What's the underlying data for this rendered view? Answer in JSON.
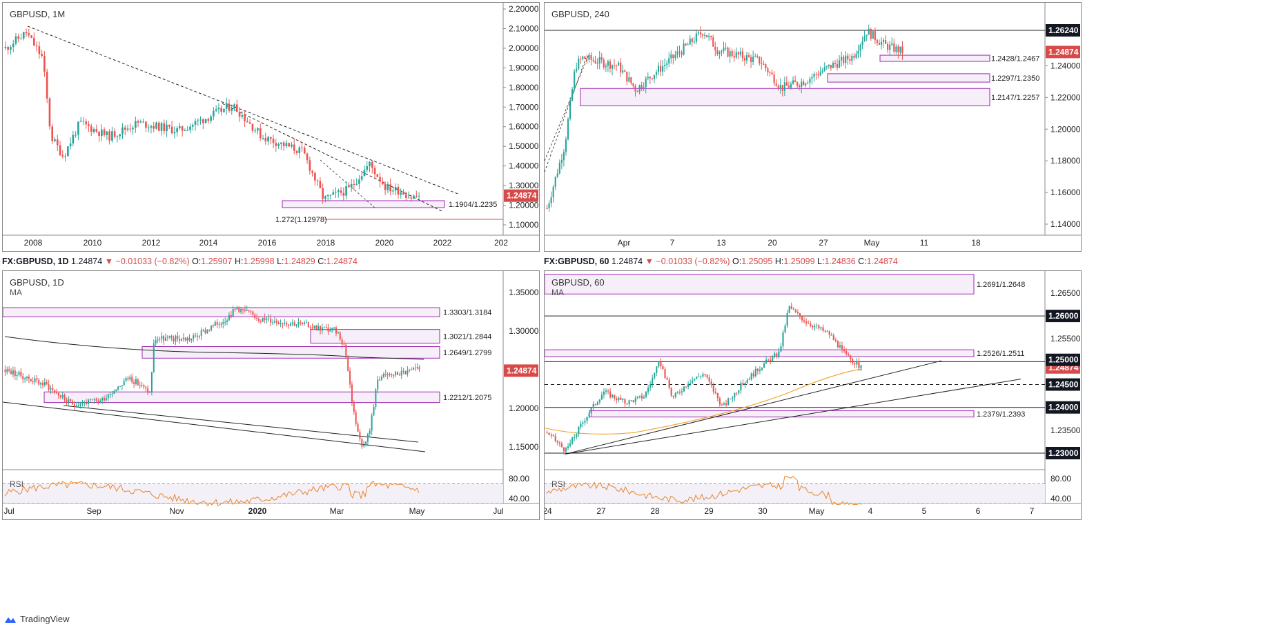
{
  "app": {
    "brand": "TradingView"
  },
  "colors": {
    "up": "#26a69a",
    "down": "#ef5350",
    "zone_border": "#9c27b0",
    "zone_fill": "#f6eef8",
    "accent_red": "#d84a4a",
    "ma": "#f0a830",
    "rsi": "#e8862a"
  },
  "charts": {
    "monthly": {
      "title": "GBPUSD, 1M",
      "price_tag": "1.24874",
      "y_ticks": [
        "2.20000",
        "2.10000",
        "2.00000",
        "1.90000",
        "1.80000",
        "1.70000",
        "1.60000",
        "1.50000",
        "1.40000",
        "1.30000",
        "1.20000",
        "1.10000"
      ],
      "x_ticks": [
        "2008",
        "2010",
        "2012",
        "2014",
        "2016",
        "2018",
        "2020",
        "2022",
        "202"
      ],
      "zone_label": "1.1904/1.2235",
      "fib_label": "1.272(1.12978)"
    },
    "h4": {
      "title": "GBPUSD, 240",
      "infobar": {
        "symbol": "FX:GBPUSD, 60",
        "last": "1.24874",
        "change": "▼ −0.01033 (−0.82%)",
        "o": "O:",
        "o_val": "1.25095",
        "h": "H:",
        "h_val": "1.25099",
        "l": "L:",
        "l_val": "1.24836",
        "c": "C:",
        "c_val": "1.24874"
      },
      "price_tag": "1.24874",
      "level_tag": "1.26240",
      "y_ticks": [
        "1.24000",
        "1.22000",
        "1.20000",
        "1.18000",
        "1.16000",
        "1.14000"
      ],
      "x_ticks": [
        "Apr",
        "7",
        "13",
        "20",
        "27",
        "May",
        "11",
        "18"
      ],
      "zones": [
        "1.2428/1.2467",
        "1.2297/1.2350",
        "1.2147/1.2257"
      ]
    },
    "daily": {
      "title": "GBPUSD, 1D",
      "ma_label": "MA",
      "rsi_label": "RSI",
      "infobar": {
        "symbol": "FX:GBPUSD, 1D",
        "last": "1.24874",
        "change": "▼ −0.01033 (−0.82%)",
        "o": "O:",
        "o_val": "1.25907",
        "h": "H:",
        "h_val": "1.25998",
        "l": "L:",
        "l_val": "1.24829",
        "c": "C:",
        "c_val": "1.24874"
      },
      "price_tag": "1.24874",
      "y_ticks": [
        "1.35000",
        "1.30000",
        "1.25000",
        "1.20000",
        "1.15000"
      ],
      "rsi_ticks": [
        "80.00",
        "40.00"
      ],
      "x_ticks": [
        "Jul",
        "Sep",
        "Nov",
        "2020",
        "Mar",
        "May",
        "Jul"
      ],
      "zones": [
        "1.3303/1.3184",
        "1.3021/1.2844",
        "1.2649/1.2799",
        "1.2212/1.2075"
      ]
    },
    "h1": {
      "title": "GBPUSD, 60",
      "ma_label": "MA",
      "rsi_label": "RSI",
      "price_tag": "1.24874",
      "level_tags": [
        "1.26000",
        "1.25000",
        "1.24500",
        "1.24000",
        "1.23000"
      ],
      "y_ticks": [
        "1.26500",
        "1.25500",
        "1.23500"
      ],
      "rsi_ticks": [
        "80.00",
        "40.00"
      ],
      "x_ticks": [
        "24",
        "27",
        "28",
        "29",
        "30",
        "May",
        "4",
        "5",
        "6",
        "7"
      ],
      "zones": [
        "1.2691/1.2648",
        "1.2526/1.2511",
        "1.2379/1.2393"
      ]
    }
  },
  "chart_data": [
    {
      "type": "line",
      "title": "GBPUSD, 1M",
      "x": [
        2007.5,
        2008,
        2008.6,
        2009,
        2010,
        2011,
        2012,
        2013,
        2014,
        2014.5,
        2015,
        2016,
        2016.5,
        2017,
        2018,
        2018.3,
        2019,
        2019.8,
        2020,
        2020.3
      ],
      "y": [
        2.0,
        2.08,
        1.7,
        1.4,
        1.55,
        1.62,
        1.6,
        1.55,
        1.68,
        1.71,
        1.52,
        1.4,
        1.23,
        1.24,
        1.38,
        1.42,
        1.28,
        1.2,
        1.32,
        1.24874
      ],
      "ylim": [
        1.06,
        2.22
      ],
      "zones": [
        [
          1.1904,
          1.2235
        ]
      ],
      "levels": [
        1.12978
      ]
    },
    {
      "type": "line",
      "title": "GBPUSD, 240",
      "x": [
        "Mar 20",
        "Mar 24",
        "Apr 1",
        "Apr 7",
        "Apr 14",
        "Apr 21",
        "Apr 27",
        "Apr 30",
        "May 1"
      ],
      "y": [
        1.15,
        1.24,
        1.245,
        1.225,
        1.262,
        1.225,
        1.24,
        1.262,
        1.24874
      ],
      "ylim": [
        1.13,
        1.27
      ],
      "zones": [
        [
          1.2428,
          1.2467
        ],
        [
          1.2297,
          1.235
        ],
        [
          1.2147,
          1.2257
        ]
      ],
      "levels": [
        1.2624
      ]
    },
    {
      "type": "line",
      "title": "GBPUSD, 1D",
      "x": [
        "Jul",
        "Aug",
        "Sep",
        "Oct",
        "Nov",
        "Dec",
        "Jan",
        "Feb",
        "Mar",
        "Mar 20",
        "Apr",
        "May"
      ],
      "y": [
        1.25,
        1.21,
        1.23,
        1.29,
        1.29,
        1.33,
        1.31,
        1.3,
        1.28,
        1.15,
        1.24,
        1.24874
      ],
      "ylim": [
        1.13,
        1.37
      ],
      "zones": [
        [
          1.3184,
          1.3303
        ],
        [
          1.2844,
          1.3021
        ],
        [
          1.2649,
          1.2799
        ],
        [
          1.2075,
          1.2212
        ]
      ],
      "rsi_ticks": [
        80,
        40
      ]
    },
    {
      "type": "line",
      "title": "GBPUSD, 60",
      "x": [
        "24",
        "27",
        "28",
        "29",
        "30",
        "May 1"
      ],
      "y": [
        1.235,
        1.242,
        1.248,
        1.24,
        1.264,
        1.24874
      ],
      "ylim": [
        1.227,
        1.268
      ],
      "zones": [
        [
          1.2648,
          1.2691
        ],
        [
          1.2511,
          1.2526
        ],
        [
          1.2379,
          1.2393
        ]
      ],
      "levels": [
        1.26,
        1.25,
        1.245,
        1.24,
        1.23
      ]
    }
  ]
}
